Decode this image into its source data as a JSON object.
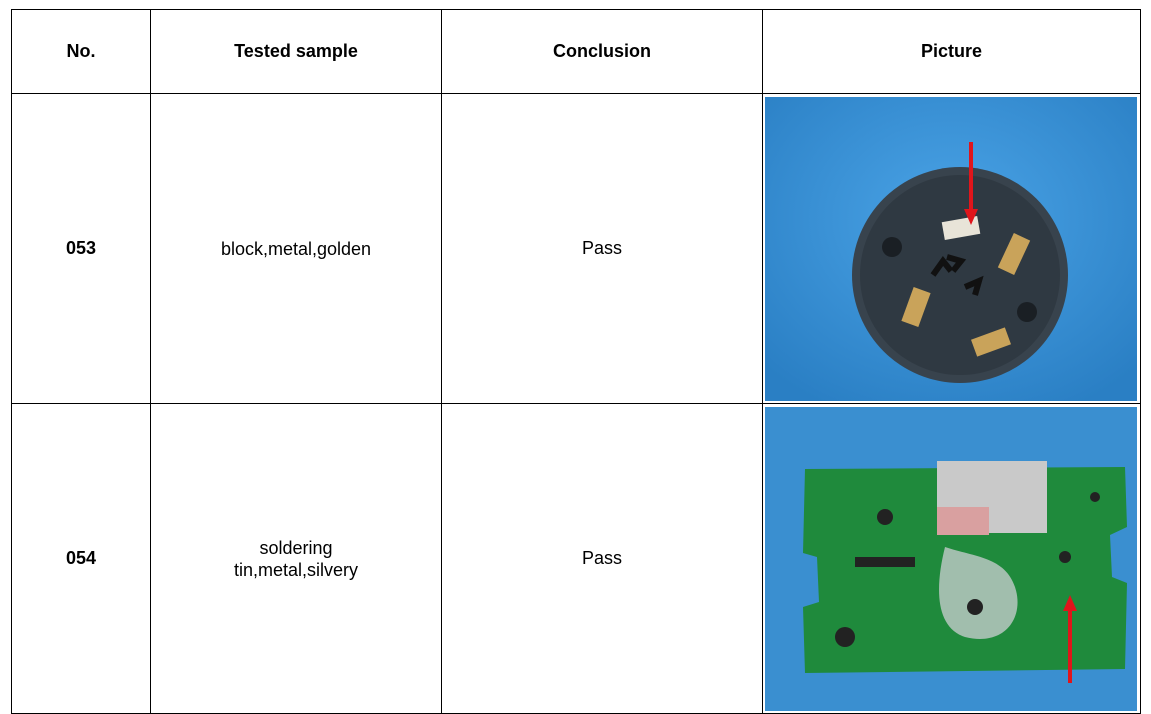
{
  "table": {
    "header": [
      "No.",
      "Tested sample",
      "Conclusion",
      "Picture"
    ],
    "rows": [
      {
        "no": "053",
        "sample": [
          "block,metal,golden"
        ],
        "conclusion": "Pass"
      },
      {
        "no": "054",
        "sample": [
          "soldering",
          "tin,metal,silvery"
        ],
        "conclusion": "Pass"
      }
    ]
  }
}
